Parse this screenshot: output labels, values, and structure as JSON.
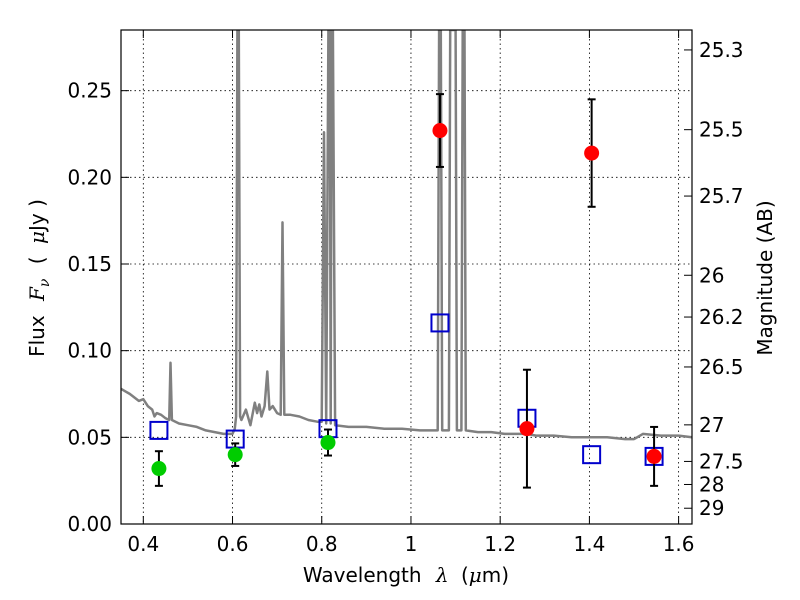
{
  "chart_data": {
    "type": "scatter",
    "xlabel_main": "Wavelength",
    "xlabel_symbol": "λ",
    "xlabel_unit_open": "(",
    "xlabel_unit_symbol": "μ",
    "xlabel_unit_rest": "m)",
    "ylabel_main": "Flux",
    "ylabel_symbol_F": "F",
    "ylabel_symbol_sub": "ν",
    "ylabel_unit_open": "(",
    "ylabel_unit_symbol": "μ",
    "ylabel_unit_rest": "Jy )",
    "y2label": "Magnitude (AB)",
    "xlim": [
      0.35,
      1.63
    ],
    "ylim": [
      0.0,
      0.285
    ],
    "x_ticks": [
      0.4,
      0.6,
      0.8,
      1.0,
      1.2,
      1.4,
      1.6
    ],
    "x_tick_labels": [
      "0.4",
      "0.6",
      "0.8",
      "1",
      "1.2",
      "1.4",
      "1.6"
    ],
    "y_ticks": [
      0.0,
      0.05,
      0.1,
      0.15,
      0.2,
      0.25
    ],
    "y_tick_labels": [
      "0.00",
      "0.05",
      "0.10",
      "0.15",
      "0.20",
      "0.25"
    ],
    "y2_ticks": [
      {
        "label": "25.3",
        "flux": 0.2735
      },
      {
        "label": "25.5",
        "flux": 0.2275
      },
      {
        "label": "25.7",
        "flux": 0.1892
      },
      {
        "label": "26",
        "flux": 0.1435
      },
      {
        "label": "26.2",
        "flux": 0.1194
      },
      {
        "label": "26.5",
        "flux": 0.0906
      },
      {
        "label": "27",
        "flux": 0.0572
      },
      {
        "label": "27.5",
        "flux": 0.0361
      },
      {
        "label": "28",
        "flux": 0.0228
      },
      {
        "label": "29",
        "flux": 0.0091
      }
    ],
    "grid": true,
    "series": [
      {
        "kind": "spectrum",
        "color": "#808080",
        "points": [
          [
            0.35,
            0.078
          ],
          [
            0.37,
            0.075
          ],
          [
            0.39,
            0.071
          ],
          [
            0.4,
            0.072
          ],
          [
            0.41,
            0.068
          ],
          [
            0.42,
            0.066
          ],
          [
            0.425,
            0.062
          ],
          [
            0.43,
            0.064
          ],
          [
            0.44,
            0.063
          ],
          [
            0.45,
            0.061
          ],
          [
            0.458,
            0.06
          ],
          [
            0.461,
            0.093
          ],
          [
            0.464,
            0.06
          ],
          [
            0.48,
            0.058
          ],
          [
            0.5,
            0.057
          ],
          [
            0.52,
            0.056
          ],
          [
            0.54,
            0.054
          ],
          [
            0.56,
            0.053
          ],
          [
            0.58,
            0.052
          ],
          [
            0.6,
            0.052
          ],
          [
            0.605,
            0.055
          ],
          [
            0.608,
            0.062
          ],
          [
            0.611,
            0.285
          ],
          [
            0.614,
            0.285
          ],
          [
            0.617,
            0.062
          ],
          [
            0.62,
            0.06
          ],
          [
            0.63,
            0.066
          ],
          [
            0.64,
            0.057
          ],
          [
            0.65,
            0.07
          ],
          [
            0.655,
            0.064
          ],
          [
            0.66,
            0.069
          ],
          [
            0.665,
            0.062
          ],
          [
            0.672,
            0.068
          ],
          [
            0.678,
            0.088
          ],
          [
            0.683,
            0.066
          ],
          [
            0.69,
            0.068
          ],
          [
            0.7,
            0.064
          ],
          [
            0.708,
            0.063
          ],
          [
            0.712,
            0.174
          ],
          [
            0.716,
            0.063
          ],
          [
            0.73,
            0.063
          ],
          [
            0.75,
            0.062
          ],
          [
            0.77,
            0.06
          ],
          [
            0.79,
            0.059
          ],
          [
            0.8,
            0.059
          ],
          [
            0.805,
            0.226
          ],
          [
            0.81,
            0.058
          ],
          [
            0.815,
            0.285
          ],
          [
            0.818,
            0.285
          ],
          [
            0.82,
            0.058
          ],
          [
            0.822,
            0.285
          ],
          [
            0.825,
            0.285
          ],
          [
            0.83,
            0.057
          ],
          [
            0.86,
            0.056
          ],
          [
            0.9,
            0.056
          ],
          [
            0.94,
            0.055
          ],
          [
            0.98,
            0.055
          ],
          [
            1.02,
            0.054
          ],
          [
            1.06,
            0.054
          ],
          [
            1.063,
            0.285
          ],
          [
            1.067,
            0.285
          ],
          [
            1.07,
            0.054
          ],
          [
            1.085,
            0.054
          ],
          [
            1.088,
            0.285
          ],
          [
            1.1,
            0.285
          ],
          [
            1.103,
            0.054
          ],
          [
            1.113,
            0.054
          ],
          [
            1.116,
            0.285
          ],
          [
            1.12,
            0.285
          ],
          [
            1.123,
            0.054
          ],
          [
            1.15,
            0.053
          ],
          [
            1.18,
            0.053
          ],
          [
            1.21,
            0.052
          ],
          [
            1.24,
            0.052
          ],
          [
            1.26,
            0.052
          ],
          [
            1.28,
            0.051
          ],
          [
            1.32,
            0.051
          ],
          [
            1.36,
            0.05
          ],
          [
            1.4,
            0.05
          ],
          [
            1.44,
            0.05
          ],
          [
            1.48,
            0.049
          ],
          [
            1.5,
            0.049
          ],
          [
            1.52,
            0.052
          ],
          [
            1.56,
            0.051
          ],
          [
            1.6,
            0.051
          ],
          [
            1.63,
            0.05
          ]
        ]
      },
      {
        "kind": "model",
        "marker": "open-square",
        "color": "#0000cc",
        "points": [
          {
            "x": 0.435,
            "y": 0.054
          },
          {
            "x": 0.606,
            "y": 0.049
          },
          {
            "x": 0.814,
            "y": 0.055
          },
          {
            "x": 1.065,
            "y": 0.116
          },
          {
            "x": 1.26,
            "y": 0.061
          },
          {
            "x": 1.405,
            "y": 0.04
          },
          {
            "x": 1.545,
            "y": 0.039
          }
        ]
      },
      {
        "kind": "observed",
        "marker": "filled-circle",
        "color": "#00cc00",
        "points": [
          {
            "x": 0.435,
            "y": 0.032,
            "err": 0.01
          },
          {
            "x": 0.606,
            "y": 0.04,
            "err": 0.0065
          },
          {
            "x": 0.814,
            "y": 0.047,
            "err": 0.0075
          }
        ]
      },
      {
        "kind": "observed",
        "marker": "filled-circle",
        "color": "#ff0000",
        "points": [
          {
            "x": 1.065,
            "y": 0.227,
            "err": 0.021
          },
          {
            "x": 1.26,
            "y": 0.055,
            "err": 0.034
          },
          {
            "x": 1.405,
            "y": 0.214,
            "err": 0.031
          },
          {
            "x": 1.545,
            "y": 0.039,
            "err": 0.017
          }
        ]
      }
    ]
  }
}
